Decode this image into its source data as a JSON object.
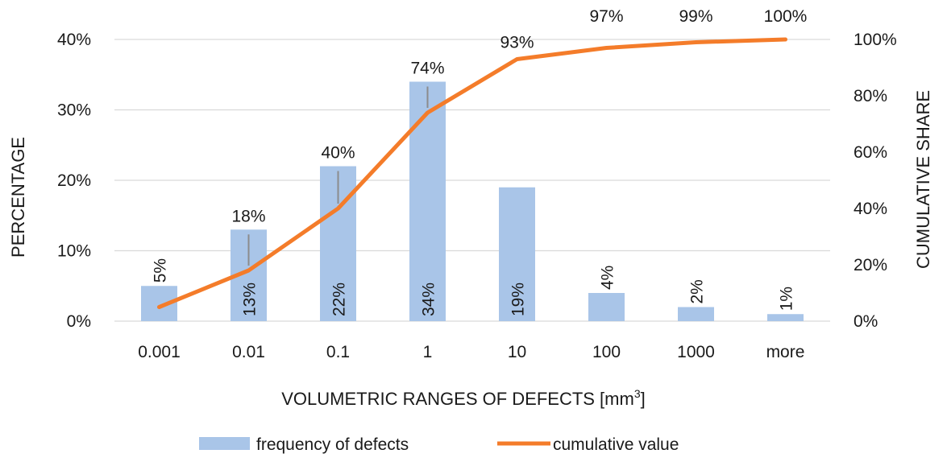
{
  "chart_data": {
    "type": "bar+line",
    "categories": [
      "0.001",
      "0.01",
      "0.1",
      "1",
      "10",
      "100",
      "1000",
      "more"
    ],
    "series": [
      {
        "name": "frequency of defects",
        "type": "bar",
        "axis": "left",
        "values": [
          5,
          13,
          22,
          34,
          19,
          4,
          2,
          1
        ],
        "labels": [
          "5%",
          "13%",
          "22%",
          "34%",
          "19%",
          "4%",
          "2%",
          "1%"
        ],
        "color": "#a9c5e8"
      },
      {
        "name": "cumulative value",
        "type": "line",
        "axis": "right",
        "values": [
          5,
          18,
          40,
          74,
          93,
          97,
          99,
          100
        ],
        "labels": [
          "",
          "18%",
          "40%",
          "74%",
          "93%",
          "97%",
          "99%",
          "100%"
        ],
        "color": "#f47c2a"
      }
    ],
    "xlabel_main": "VOLUMETRIC RANGES OF DEFECTS [mm",
    "xlabel_sup": "3",
    "xlabel_end": "]",
    "ylabel_left": "PERCENTAGE",
    "ylabel_right": "CUMULATIVE SHARE",
    "ylim_left": [
      0,
      40
    ],
    "ylim_right": [
      0,
      100
    ],
    "yticks_left": [
      "0%",
      "10%",
      "20%",
      "30%",
      "40%"
    ],
    "yticks_right": [
      "0%",
      "20%",
      "40%",
      "60%",
      "80%",
      "100%"
    ],
    "grid": true,
    "legend_position": "bottom",
    "gridline_color": "#d9d9d9",
    "leader_color": "#8c8c8c"
  }
}
